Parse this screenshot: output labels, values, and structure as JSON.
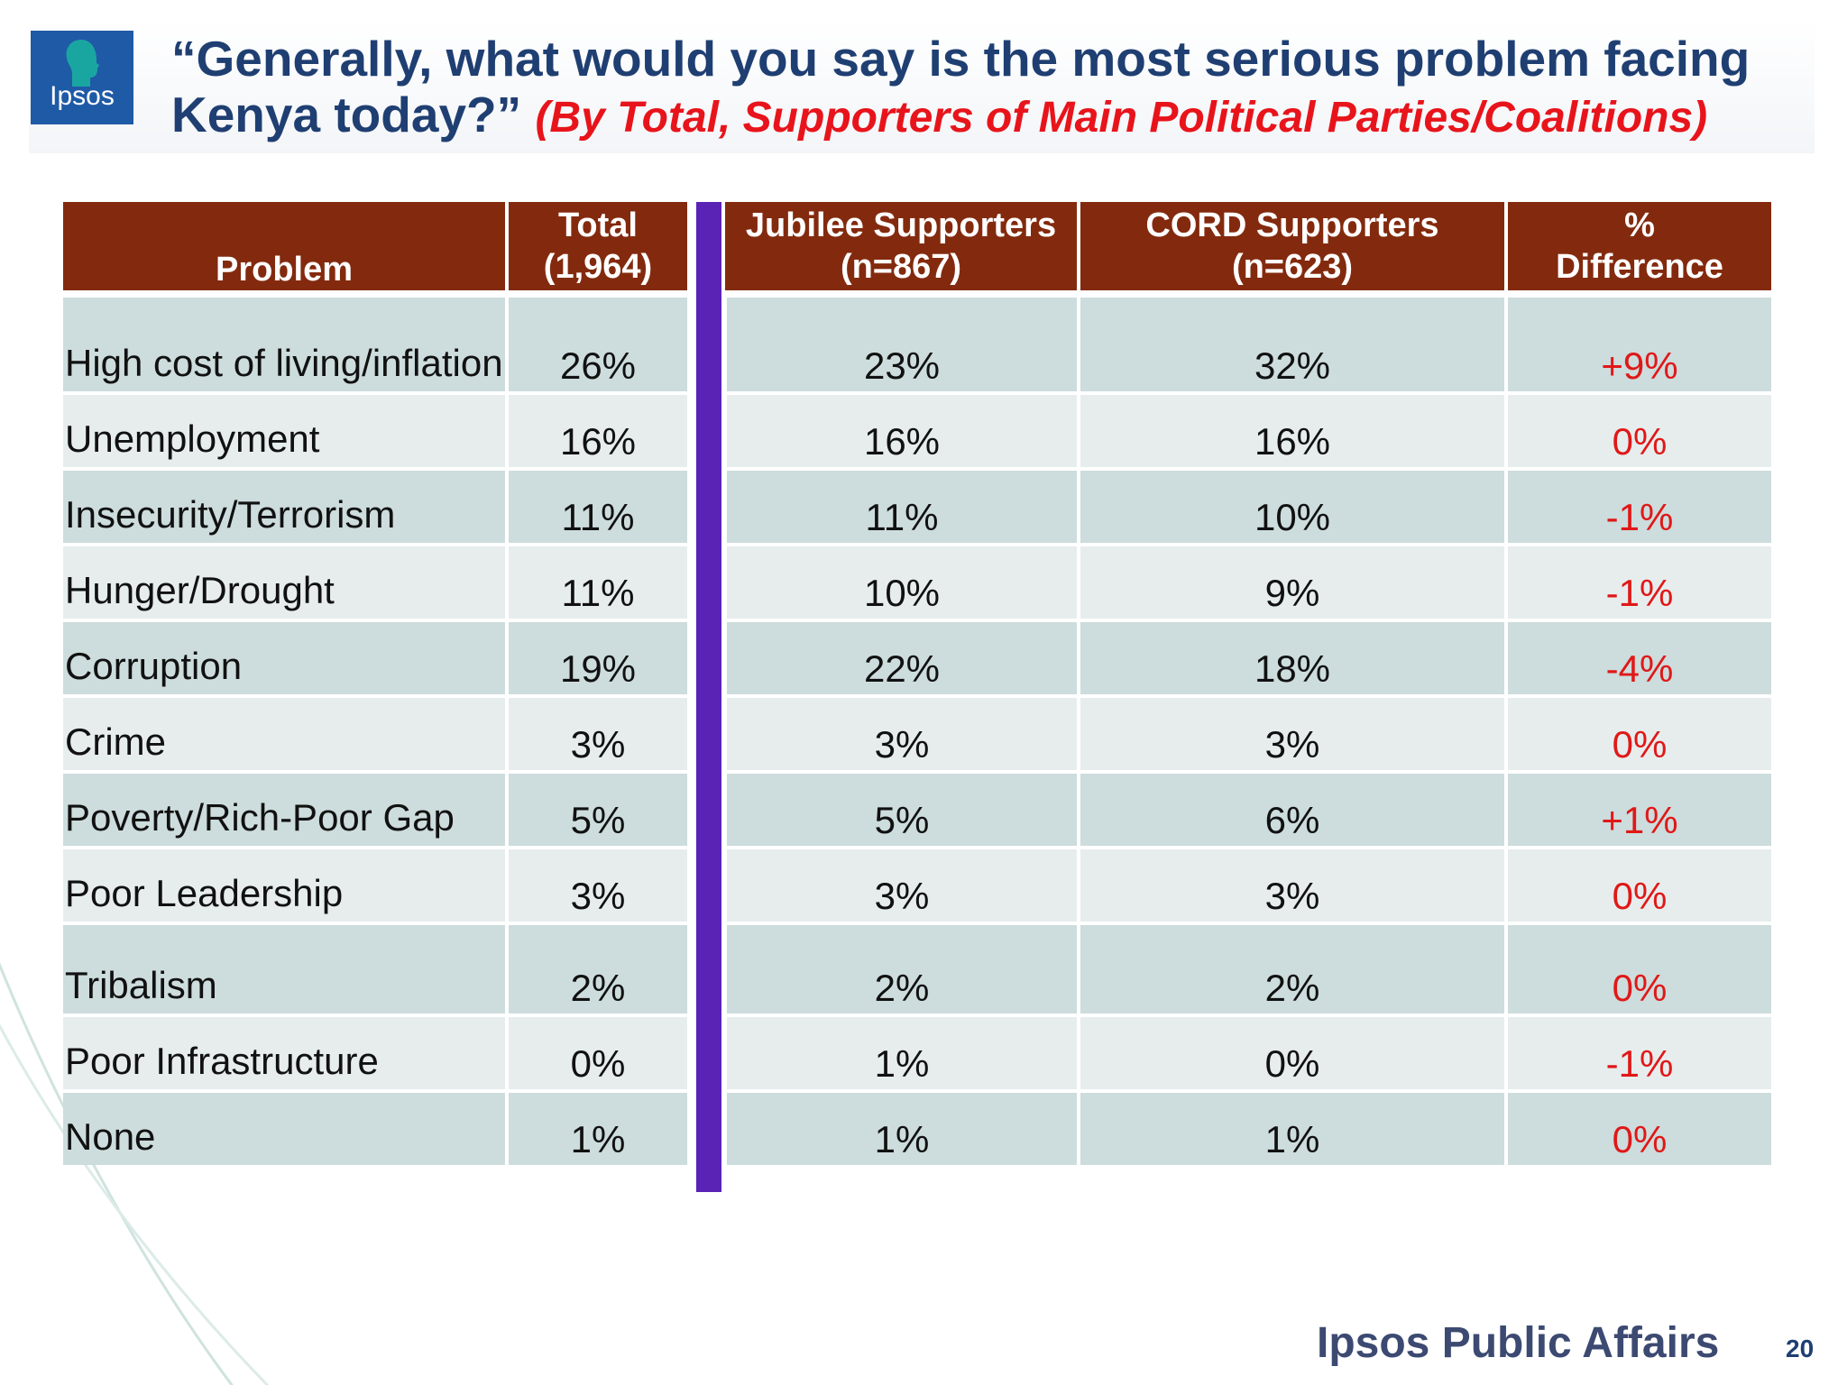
{
  "logo": {
    "text": "Ipsos"
  },
  "title": {
    "main": "“Generally, what would you say is the most serious problem facing Kenya today?”",
    "subtitle": "(By Total, Supporters of Main Political Parties/Coalitions)"
  },
  "table": {
    "headers": {
      "problem": "Problem",
      "total": [
        "Total",
        "(1,964)"
      ],
      "jubilee": [
        "Jubilee Supporters",
        "(n=867)"
      ],
      "cord": [
        "CORD Supporters",
        "(n=623)"
      ],
      "diff": [
        "%",
        "Difference"
      ]
    },
    "rows": [
      {
        "problem": "High cost of living/inflation",
        "total": "26%",
        "jubilee": "23%",
        "cord": "32%",
        "diff": "+9%"
      },
      {
        "problem": "Unemployment",
        "total": "16%",
        "jubilee": "16%",
        "cord": "16%",
        "diff": "0%"
      },
      {
        "problem": "Insecurity/Terrorism",
        "total": "11%",
        "jubilee": "11%",
        "cord": "10%",
        "diff": "-1%"
      },
      {
        "problem": "Hunger/Drought",
        "total": "11%",
        "jubilee": "10%",
        "cord": "9%",
        "diff": "-1%"
      },
      {
        "problem": "Corruption",
        "total": "19%",
        "jubilee": "22%",
        "cord": "18%",
        "diff": "-4%"
      },
      {
        "problem": "Crime",
        "total": "3%",
        "jubilee": "3%",
        "cord": "3%",
        "diff": "0%"
      },
      {
        "problem": "Poverty/Rich-Poor Gap",
        "total": "5%",
        "jubilee": "5%",
        "cord": "6%",
        "diff": "+1%"
      },
      {
        "problem": "Poor Leadership",
        "total": "3%",
        "jubilee": "3%",
        "cord": "3%",
        "diff": "0%"
      },
      {
        "problem": "Tribalism",
        "total": "2%",
        "jubilee": "2%",
        "cord": "2%",
        "diff": "0%"
      },
      {
        "problem": "Poor Infrastructure",
        "total": "0%",
        "jubilee": "1%",
        "cord": "0%",
        "diff": "-1%"
      },
      {
        "problem": "None",
        "total": "1%",
        "jubilee": "1%",
        "cord": "1%",
        "diff": "0%"
      }
    ]
  },
  "footer": {
    "brand": "Ipsos Public Affairs",
    "page": "20"
  },
  "colors": {
    "header_bg": "#832a0e",
    "title": "#1f3f72",
    "subtitle": "#e8141b",
    "diff_text": "#e01818",
    "divider_bar": "#5a22b5",
    "row_dark": "#cddcdc",
    "row_light": "#e7eded"
  }
}
